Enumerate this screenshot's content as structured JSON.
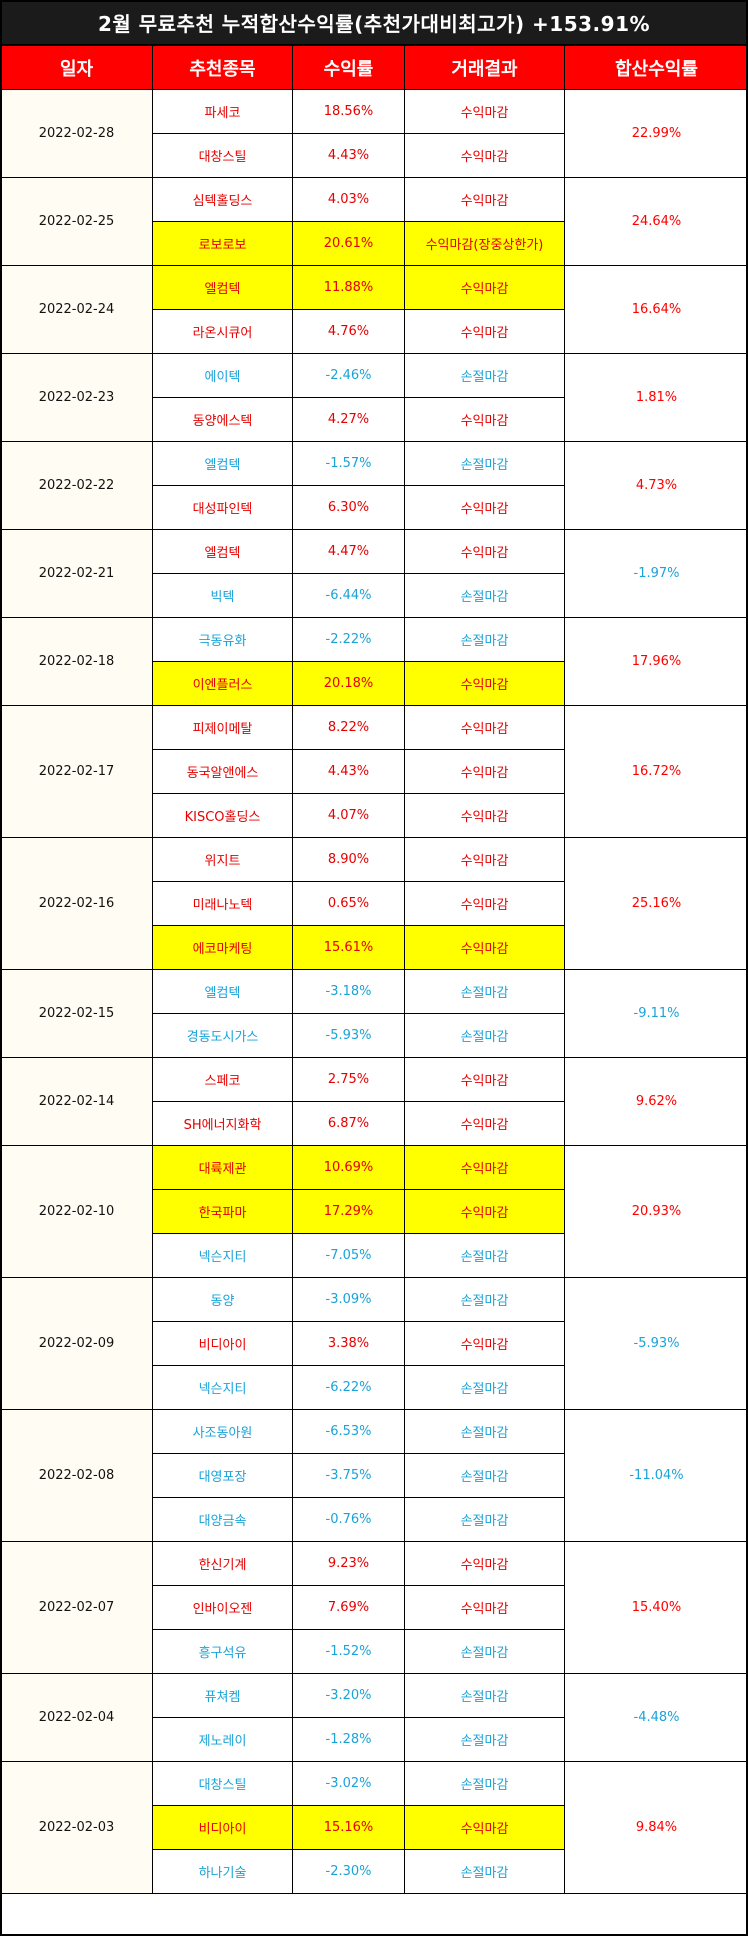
{
  "title": "2월 무료추천 누적합산수익률(추천가대비최고가) +153.91%",
  "headers": [
    "일자",
    "추천종목",
    "수익률",
    "거래결과",
    "합산수익률"
  ],
  "groups": [
    {
      "date": "2022-02-28",
      "total": "22.99%",
      "total_sign": "pos",
      "rows": [
        {
          "name": "파세코",
          "ret": "18.56%",
          "result": "수익마감",
          "sign": "pos",
          "hl": false
        },
        {
          "name": "대창스틸",
          "ret": "4.43%",
          "result": "수익마감",
          "sign": "pos",
          "hl": false
        }
      ]
    },
    {
      "date": "2022-02-25",
      "total": "24.64%",
      "total_sign": "pos",
      "rows": [
        {
          "name": "심텍홀딩스",
          "ret": "4.03%",
          "result": "수익마감",
          "sign": "pos",
          "hl": false
        },
        {
          "name": "로보로보",
          "ret": "20.61%",
          "result": "수익마감(장중상한가)",
          "sign": "pos",
          "hl": true
        }
      ]
    },
    {
      "date": "2022-02-24",
      "total": "16.64%",
      "total_sign": "pos",
      "rows": [
        {
          "name": "엘컴텍",
          "ret": "11.88%",
          "result": "수익마감",
          "sign": "pos",
          "hl": true
        },
        {
          "name": "라온시큐어",
          "ret": "4.76%",
          "result": "수익마감",
          "sign": "pos",
          "hl": false
        }
      ]
    },
    {
      "date": "2022-02-23",
      "total": "1.81%",
      "total_sign": "pos",
      "rows": [
        {
          "name": "에이텍",
          "ret": "-2.46%",
          "result": "손절마감",
          "sign": "neg",
          "hl": false
        },
        {
          "name": "동양에스텍",
          "ret": "4.27%",
          "result": "수익마감",
          "sign": "pos",
          "hl": false
        }
      ]
    },
    {
      "date": "2022-02-22",
      "total": "4.73%",
      "total_sign": "pos",
      "rows": [
        {
          "name": "엘컴텍",
          "ret": "-1.57%",
          "result": "손절마감",
          "sign": "neg",
          "hl": false
        },
        {
          "name": "대성파인텍",
          "ret": "6.30%",
          "result": "수익마감",
          "sign": "pos",
          "hl": false
        }
      ]
    },
    {
      "date": "2022-02-21",
      "total": "-1.97%",
      "total_sign": "neg",
      "rows": [
        {
          "name": "엘컴텍",
          "ret": "4.47%",
          "result": "수익마감",
          "sign": "pos",
          "hl": false
        },
        {
          "name": "빅텍",
          "ret": "-6.44%",
          "result": "손절마감",
          "sign": "neg",
          "hl": false
        }
      ]
    },
    {
      "date": "2022-02-18",
      "total": "17.96%",
      "total_sign": "pos",
      "rows": [
        {
          "name": "극동유화",
          "ret": "-2.22%",
          "result": "손절마감",
          "sign": "neg",
          "hl": false
        },
        {
          "name": "이엔플러스",
          "ret": "20.18%",
          "result": "수익마감",
          "sign": "pos",
          "hl": true
        }
      ]
    },
    {
      "date": "2022-02-17",
      "total": "16.72%",
      "total_sign": "pos",
      "rows": [
        {
          "name": "피제이메탈",
          "ret": "8.22%",
          "result": "수익마감",
          "sign": "pos",
          "hl": false
        },
        {
          "name": "동국알앤에스",
          "ret": "4.43%",
          "result": "수익마감",
          "sign": "pos",
          "hl": false
        },
        {
          "name": "KISCO홀딩스",
          "ret": "4.07%",
          "result": "수익마감",
          "sign": "pos",
          "hl": false
        }
      ]
    },
    {
      "date": "2022-02-16",
      "total": "25.16%",
      "total_sign": "pos",
      "rows": [
        {
          "name": "위지트",
          "ret": "8.90%",
          "result": "수익마감",
          "sign": "pos",
          "hl": false
        },
        {
          "name": "미래나노텍",
          "ret": "0.65%",
          "result": "수익마감",
          "sign": "pos",
          "hl": false
        },
        {
          "name": "에코마케팅",
          "ret": "15.61%",
          "result": "수익마감",
          "sign": "pos",
          "hl": true
        }
      ]
    },
    {
      "date": "2022-02-15",
      "total": "-9.11%",
      "total_sign": "neg",
      "rows": [
        {
          "name": "엘컴텍",
          "ret": "-3.18%",
          "result": "손절마감",
          "sign": "neg",
          "hl": false
        },
        {
          "name": "경동도시가스",
          "ret": "-5.93%",
          "result": "손절마감",
          "sign": "neg",
          "hl": false
        }
      ]
    },
    {
      "date": "2022-02-14",
      "total": "9.62%",
      "total_sign": "pos",
      "rows": [
        {
          "name": "스페코",
          "ret": "2.75%",
          "result": "수익마감",
          "sign": "pos",
          "hl": false
        },
        {
          "name": "SH에너지화학",
          "ret": "6.87%",
          "result": "수익마감",
          "sign": "pos",
          "hl": false
        }
      ]
    },
    {
      "date": "2022-02-10",
      "total": "20.93%",
      "total_sign": "pos",
      "rows": [
        {
          "name": "대륙제관",
          "ret": "10.69%",
          "result": "수익마감",
          "sign": "pos",
          "hl": true
        },
        {
          "name": "한국파마",
          "ret": "17.29%",
          "result": "수익마감",
          "sign": "pos",
          "hl": true
        },
        {
          "name": "넥슨지티",
          "ret": "-7.05%",
          "result": "손절마감",
          "sign": "neg",
          "hl": false
        }
      ]
    },
    {
      "date": "2022-02-09",
      "total": "-5.93%",
      "total_sign": "neg",
      "rows": [
        {
          "name": "동양",
          "ret": "-3.09%",
          "result": "손절마감",
          "sign": "neg",
          "hl": false
        },
        {
          "name": "비디아이",
          "ret": "3.38%",
          "result": "수익마감",
          "sign": "pos",
          "hl": false
        },
        {
          "name": "넥슨지티",
          "ret": "-6.22%",
          "result": "손절마감",
          "sign": "neg",
          "hl": false
        }
      ]
    },
    {
      "date": "2022-02-08",
      "total": "-11.04%",
      "total_sign": "neg",
      "rows": [
        {
          "name": "사조동아원",
          "ret": "-6.53%",
          "result": "손절마감",
          "sign": "neg",
          "hl": false
        },
        {
          "name": "대영포장",
          "ret": "-3.75%",
          "result": "손절마감",
          "sign": "neg",
          "hl": false
        },
        {
          "name": "대양금속",
          "ret": "-0.76%",
          "result": "손절마감",
          "sign": "neg",
          "hl": false
        }
      ]
    },
    {
      "date": "2022-02-07",
      "total": "15.40%",
      "total_sign": "pos",
      "rows": [
        {
          "name": "한신기계",
          "ret": "9.23%",
          "result": "수익마감",
          "sign": "pos",
          "hl": false
        },
        {
          "name": "인바이오젠",
          "ret": "7.69%",
          "result": "수익마감",
          "sign": "pos",
          "hl": false
        },
        {
          "name": "흥구석유",
          "ret": "-1.52%",
          "result": "손절마감",
          "sign": "neg",
          "hl": false
        }
      ]
    },
    {
      "date": "2022-02-04",
      "total": "-4.48%",
      "total_sign": "neg",
      "rows": [
        {
          "name": "퓨쳐켐",
          "ret": "-3.20%",
          "result": "손절마감",
          "sign": "neg",
          "hl": false
        },
        {
          "name": "제노레이",
          "ret": "-1.28%",
          "result": "손절마감",
          "sign": "neg",
          "hl": false
        }
      ]
    },
    {
      "date": "2022-02-03",
      "total": "9.84%",
      "total_sign": "pos",
      "rows": [
        {
          "name": "대창스틸",
          "ret": "-3.02%",
          "result": "손절마감",
          "sign": "neg",
          "hl": false
        },
        {
          "name": "비디아이",
          "ret": "15.16%",
          "result": "수익마감",
          "sign": "pos",
          "hl": true
        },
        {
          "name": "하나기술",
          "ret": "-2.30%",
          "result": "손절마감",
          "sign": "neg",
          "hl": false
        }
      ]
    }
  ],
  "colors": {
    "header_bg": "#ff0000",
    "title_bg": "#1b1b1b",
    "positive": "#e60000",
    "negative": "#1aa3d9",
    "highlight": "#ffff00",
    "date_bg": "#fffdf3"
  }
}
